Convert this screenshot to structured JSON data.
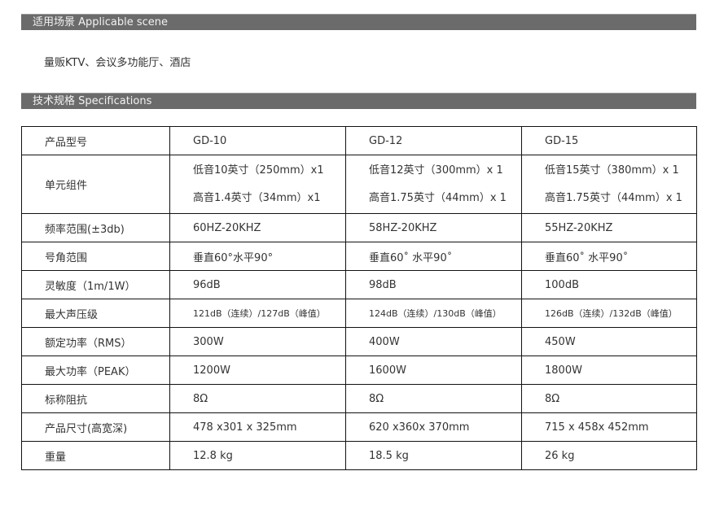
{
  "sections": {
    "scene_title": "适用场景  Applicable scene",
    "scene_text": "量贩KTV、会议多功能厅、酒店",
    "spec_title": "技术规格 Specifications"
  },
  "table": {
    "rows": [
      {
        "label": "产品型号",
        "values": [
          "GD-10",
          "GD-12",
          "GD-15"
        ]
      },
      {
        "label": "单元组件",
        "values": [
          [
            "低音10英寸（250mm）x1",
            "高音1.4英寸（34mm）x1"
          ],
          [
            "低音12英寸（300mm）x 1",
            "高音1.75英寸（44mm）x 1"
          ],
          [
            "低音15英寸（380mm）x 1",
            "高音1.75英寸（44mm）x 1"
          ]
        ]
      },
      {
        "label": "频率范围(±3db)",
        "values": [
          "60HZ-20KHZ",
          "58HZ-20KHZ",
          "55HZ-20KHZ"
        ]
      },
      {
        "label": "号角范围",
        "values": [
          "垂直60°水平90°",
          "垂直60˚ 水平90˚",
          "垂直60˚ 水平90˚"
        ]
      },
      {
        "label": "灵敏度（1m/1W）",
        "values": [
          "96dB",
          "98dB",
          "100dB"
        ]
      },
      {
        "label": "最大声压级",
        "values": [
          "121dB（连续）/127dB（峰值）",
          "124dB（连续）/130dB（峰值）",
          "126dB（连续）/132dB（峰值）"
        ]
      },
      {
        "label": "额定功率（RMS）",
        "values": [
          "300W",
          "400W",
          "450W"
        ]
      },
      {
        "label": "最大功率（PEAK）",
        "values": [
          "1200W",
          "1600W",
          "1800W"
        ]
      },
      {
        "label": "标称阻抗",
        "values": [
          "8Ω",
          "8Ω",
          "8Ω"
        ]
      },
      {
        "label": "产品尺寸(高宽深)",
        "values": [
          "478 x301 x 325mm",
          "620 x360x 370mm",
          "715 x 458x 452mm"
        ]
      },
      {
        "label": "重量",
        "values": [
          "12.8 kg",
          "18.5 kg",
          "26 kg"
        ]
      }
    ]
  }
}
